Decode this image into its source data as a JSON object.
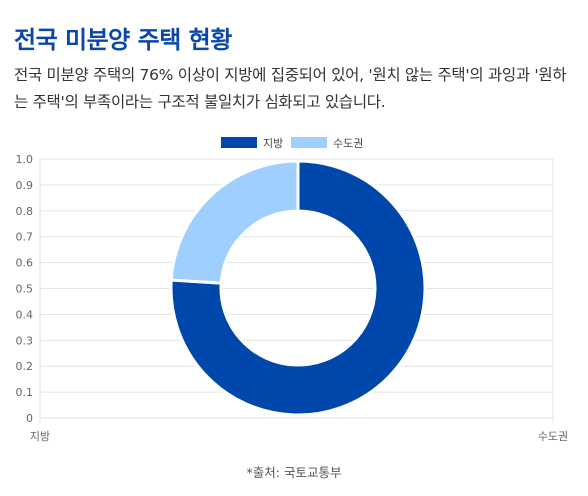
{
  "title": "전국 미분양 주택 현황",
  "description": "전국 미분양 주택의 76% 이상이 지방에 집중되어 있어, '원치 않는 주택'의 과잉과 '원하는 주택'의 부족이라는 구조적 불일치가 심화되고 있습니다.",
  "source": "*출처: 국토교통부",
  "colors": {
    "title": "#0a47a9",
    "series_local": "#0047ab",
    "series_capital": "#9fcfff"
  },
  "chart_data": {
    "type": "pie",
    "categories": [
      "지방",
      "수도권"
    ],
    "values": [
      76,
      24
    ],
    "legend": [
      "지방",
      "수도권"
    ],
    "legend_position": "top",
    "title": "",
    "xlabel": "",
    "ylabel": "",
    "ylim": [
      0,
      1
    ],
    "y_ticks": [
      "0",
      "0.1",
      "0.2",
      "0.3",
      "0.4",
      "0.5",
      "0.6",
      "0.7",
      "0.8",
      "0.9",
      "1.0"
    ],
    "x_ticks": [
      "지방",
      "수도권"
    ],
    "grid": true
  }
}
